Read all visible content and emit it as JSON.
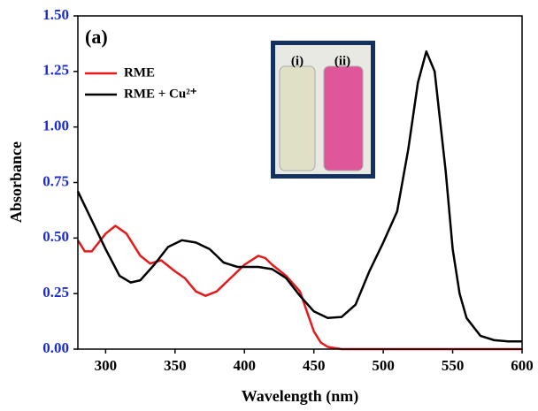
{
  "chart_data": {
    "type": "line",
    "annotation": "(a)",
    "xlabel": "Wavelength (nm)",
    "ylabel": "Absorbance",
    "xlim": [
      280,
      600
    ],
    "xticks": [
      300,
      350,
      400,
      450,
      500,
      550,
      600
    ],
    "ylim": [
      0,
      1.5
    ],
    "yticks": [
      {
        "value": 0,
        "label": "0.00"
      },
      {
        "value": 0.25,
        "label": "0.25"
      },
      {
        "value": 0.5,
        "label": "0.50"
      },
      {
        "value": 0.75,
        "label": "0.75"
      },
      {
        "value": 1.0,
        "label": "1.00"
      },
      {
        "value": 1.25,
        "label": "1.25"
      },
      {
        "value": 1.5,
        "label": "1.50"
      }
    ],
    "legend": "upper left",
    "inset_labels": [
      "(i)",
      "(ii)"
    ],
    "series": [
      {
        "name": "RME",
        "color": "#e8191b",
        "x": [
          280,
          285,
          290,
          300,
          307,
          315,
          325,
          332,
          340,
          350,
          357,
          365,
          372,
          380,
          390,
          400,
          410,
          415,
          420,
          430,
          440,
          445,
          450,
          455,
          460,
          470,
          500,
          550,
          600
        ],
        "values": [
          0.49,
          0.44,
          0.44,
          0.52,
          0.555,
          0.52,
          0.42,
          0.385,
          0.4,
          0.35,
          0.32,
          0.26,
          0.24,
          0.26,
          0.32,
          0.38,
          0.42,
          0.41,
          0.38,
          0.33,
          0.26,
          0.17,
          0.08,
          0.03,
          0.01,
          0.0,
          0.0,
          0.0,
          0.0
        ]
      },
      {
        "name": "RME + Cu²⁺",
        "color": "#000000",
        "x": [
          280,
          290,
          300,
          310,
          318,
          325,
          335,
          345,
          355,
          365,
          375,
          385,
          395,
          410,
          420,
          430,
          440,
          450,
          460,
          470,
          480,
          490,
          500,
          510,
          518,
          525,
          531,
          537,
          545,
          550,
          555,
          560,
          570,
          580,
          590,
          600
        ],
        "values": [
          0.71,
          0.58,
          0.45,
          0.33,
          0.3,
          0.31,
          0.38,
          0.46,
          0.49,
          0.48,
          0.45,
          0.39,
          0.37,
          0.37,
          0.36,
          0.32,
          0.24,
          0.17,
          0.14,
          0.145,
          0.2,
          0.35,
          0.48,
          0.62,
          0.9,
          1.2,
          1.34,
          1.25,
          0.8,
          0.45,
          0.25,
          0.14,
          0.06,
          0.04,
          0.035,
          0.035
        ]
      }
    ]
  }
}
